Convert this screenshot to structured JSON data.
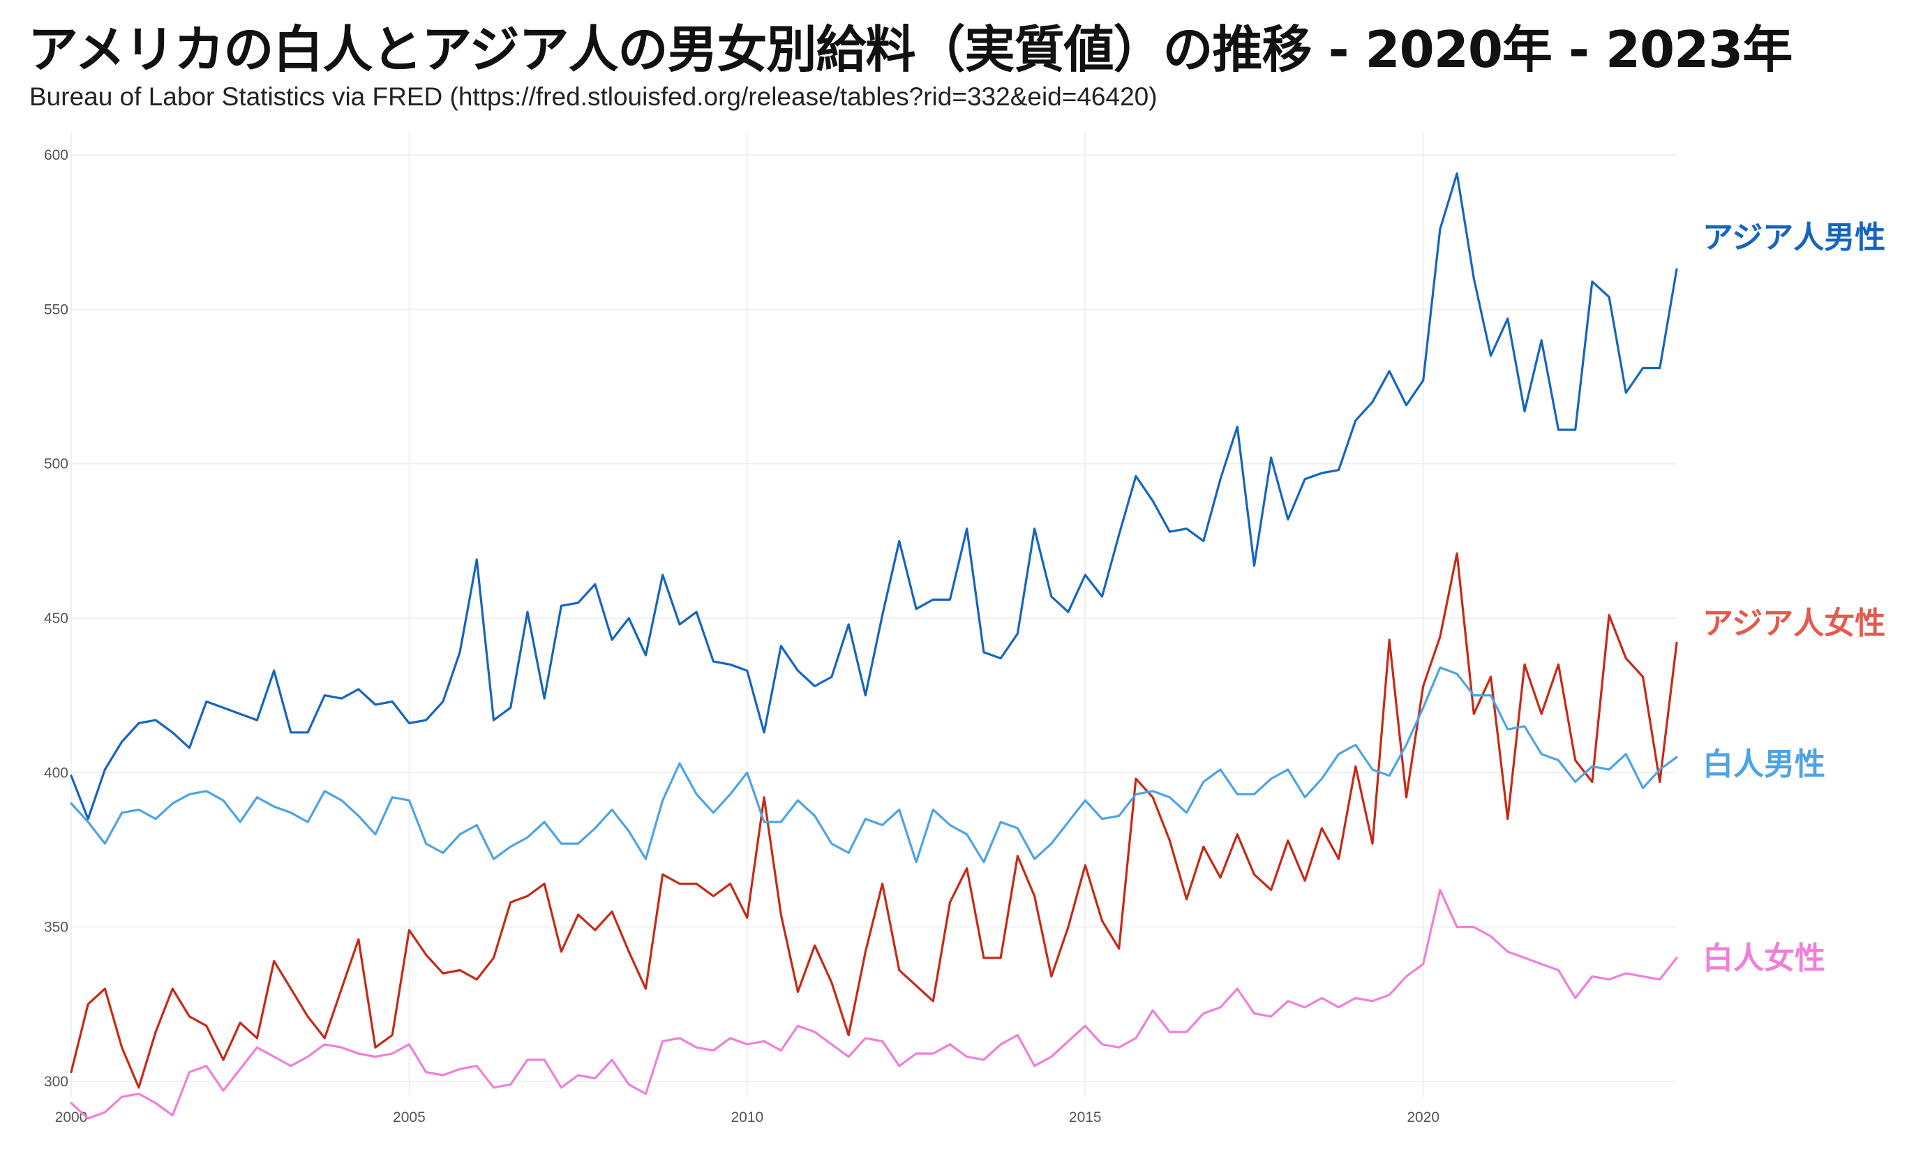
{
  "header": {
    "title": "アメリカの白人とアジア人の男女別給料（実質値）の推移 - 2020年 - 2023年",
    "subtitle": "Bureau of Labor Statistics via FRED (https://fred.stlouisfed.org/release/tables?rid=332&eid=46420)"
  },
  "chart_data": {
    "type": "line",
    "title": "アメリカの白人とアジア人の男女別給料（実質値）の推移 - 2020年 - 2023年",
    "subtitle": "Bureau of Labor Statistics via FRED (https://fred.stlouisfed.org/release/tables?rid=332&eid=46420)",
    "xlabel": "",
    "ylabel": "",
    "xlim": [
      2000,
      2023.75
    ],
    "ylim": [
      295,
      605
    ],
    "x_ticks": [
      2000,
      2005,
      2010,
      2015,
      2020
    ],
    "y_ticks": [
      300,
      350,
      400,
      450,
      500,
      550,
      600
    ],
    "grid": true,
    "legend": "direct labels at right end of lines",
    "x": [
      2000,
      2000.25,
      2000.5,
      2000.75,
      2001,
      2001.25,
      2001.5,
      2001.75,
      2002,
      2002.25,
      2002.5,
      2002.75,
      2003,
      2003.25,
      2003.5,
      2003.75,
      2004,
      2004.25,
      2004.5,
      2004.75,
      2005,
      2005.25,
      2005.5,
      2005.75,
      2006,
      2006.25,
      2006.5,
      2006.75,
      2007,
      2007.25,
      2007.5,
      2007.75,
      2008,
      2008.25,
      2008.5,
      2008.75,
      2009,
      2009.25,
      2009.5,
      2009.75,
      2010,
      2010.25,
      2010.5,
      2010.75,
      2011,
      2011.25,
      2011.5,
      2011.75,
      2012,
      2012.25,
      2012.5,
      2012.75,
      2013,
      2013.25,
      2013.5,
      2013.75,
      2014,
      2014.25,
      2014.5,
      2014.75,
      2015,
      2015.25,
      2015.5,
      2015.75,
      2016,
      2016.25,
      2016.5,
      2016.75,
      2017,
      2017.25,
      2017.5,
      2017.75,
      2018,
      2018.25,
      2018.5,
      2018.75,
      2019,
      2019.25,
      2019.5,
      2019.75,
      2020,
      2020.25,
      2020.5,
      2020.75,
      2021,
      2021.25,
      2021.5,
      2021.75,
      2022,
      2022.25,
      2022.5,
      2022.75,
      2023,
      2023.25,
      2023.5,
      2023.75
    ],
    "series": [
      {
        "name": "アジア人男性",
        "color": "#1565c0",
        "values": [
          399,
          385,
          401,
          410,
          416,
          417,
          413,
          408,
          423,
          421,
          419,
          417,
          433,
          413,
          413,
          425,
          424,
          427,
          422,
          423,
          416,
          417,
          423,
          439,
          469,
          417,
          421,
          452,
          424,
          454,
          455,
          461,
          443,
          450,
          438,
          464,
          448,
          452,
          436,
          435,
          433,
          413,
          441,
          433,
          428,
          431,
          448,
          425,
          451,
          475,
          453,
          456,
          456,
          479,
          439,
          437,
          445,
          479,
          457,
          452,
          464,
          457,
          477,
          496,
          488,
          478,
          479,
          475,
          495,
          512,
          467,
          502,
          482,
          495,
          497,
          498,
          514,
          520,
          530,
          519,
          527,
          576,
          594,
          560,
          535,
          547,
          517,
          540,
          511,
          511,
          559,
          554,
          523,
          531,
          531,
          563
        ]
      },
      {
        "name": "アジア人女性",
        "color": "#c62a17",
        "values": [
          303,
          325,
          330,
          311,
          298,
          316,
          330,
          321,
          318,
          307,
          319,
          314,
          339,
          330,
          321,
          314,
          330,
          346,
          311,
          315,
          349,
          341,
          335,
          336,
          333,
          340,
          358,
          360,
          364,
          342,
          354,
          349,
          355,
          342,
          330,
          367,
          364,
          364,
          360,
          364,
          353,
          392,
          354,
          329,
          344,
          332,
          315,
          342,
          364,
          336,
          331,
          326,
          358,
          369,
          340,
          340,
          373,
          360,
          334,
          350,
          370,
          352,
          343,
          398,
          392,
          378,
          359,
          376,
          366,
          380,
          367,
          362,
          378,
          365,
          382,
          372,
          402,
          377,
          443,
          392,
          428,
          444,
          471,
          419,
          431,
          385,
          435,
          419,
          435,
          404,
          397,
          451,
          437,
          431,
          397,
          442
        ]
      },
      {
        "name": "白人男性",
        "color": "#4da3e6",
        "values": [
          390,
          384,
          377,
          387,
          388,
          385,
          390,
          393,
          394,
          391,
          384,
          392,
          389,
          387,
          384,
          394,
          391,
          386,
          380,
          392,
          391,
          377,
          374,
          380,
          383,
          372,
          376,
          379,
          384,
          377,
          377,
          382,
          388,
          381,
          372,
          391,
          403,
          393,
          387,
          393,
          400,
          384,
          384,
          391,
          386,
          377,
          374,
          385,
          383,
          388,
          371,
          388,
          383,
          380,
          371,
          384,
          382,
          372,
          377,
          384,
          391,
          385,
          386,
          393,
          394,
          392,
          387,
          397,
          401,
          393,
          393,
          398,
          401,
          392,
          398,
          406,
          409,
          401,
          399,
          409,
          421,
          434,
          432,
          425,
          425,
          414,
          415,
          406,
          404,
          397,
          402,
          401,
          406,
          395,
          401,
          405
        ]
      },
      {
        "name": "白人女性",
        "color": "#f07fd9",
        "values": [
          293,
          288,
          290,
          295,
          296,
          293,
          289,
          303,
          305,
          297,
          304,
          311,
          308,
          305,
          308,
          312,
          311,
          309,
          308,
          309,
          312,
          303,
          302,
          304,
          305,
          298,
          299,
          307,
          307,
          298,
          302,
          301,
          307,
          299,
          296,
          313,
          314,
          311,
          310,
          314,
          312,
          313,
          310,
          318,
          316,
          312,
          308,
          314,
          313,
          305,
          309,
          309,
          312,
          308,
          307,
          312,
          315,
          305,
          308,
          313,
          318,
          312,
          311,
          314,
          323,
          316,
          316,
          322,
          324,
          330,
          322,
          321,
          326,
          324,
          327,
          324,
          327,
          326,
          328,
          334,
          338,
          362,
          350,
          350,
          347,
          342,
          340,
          338,
          336,
          327,
          334,
          333,
          335,
          334,
          333,
          340
        ]
      }
    ],
    "labels": [
      {
        "series": "アジア人男性",
        "text": "アジア人男性",
        "color": "#1565c0"
      },
      {
        "series": "アジア人女性",
        "text": "アジア人女性",
        "color": "#e35a4f"
      },
      {
        "series": "白人男性",
        "text": "白人男性",
        "color": "#4da3e6"
      },
      {
        "series": "白人女性",
        "text": "白人女性",
        "color": "#f07fd9"
      }
    ]
  }
}
